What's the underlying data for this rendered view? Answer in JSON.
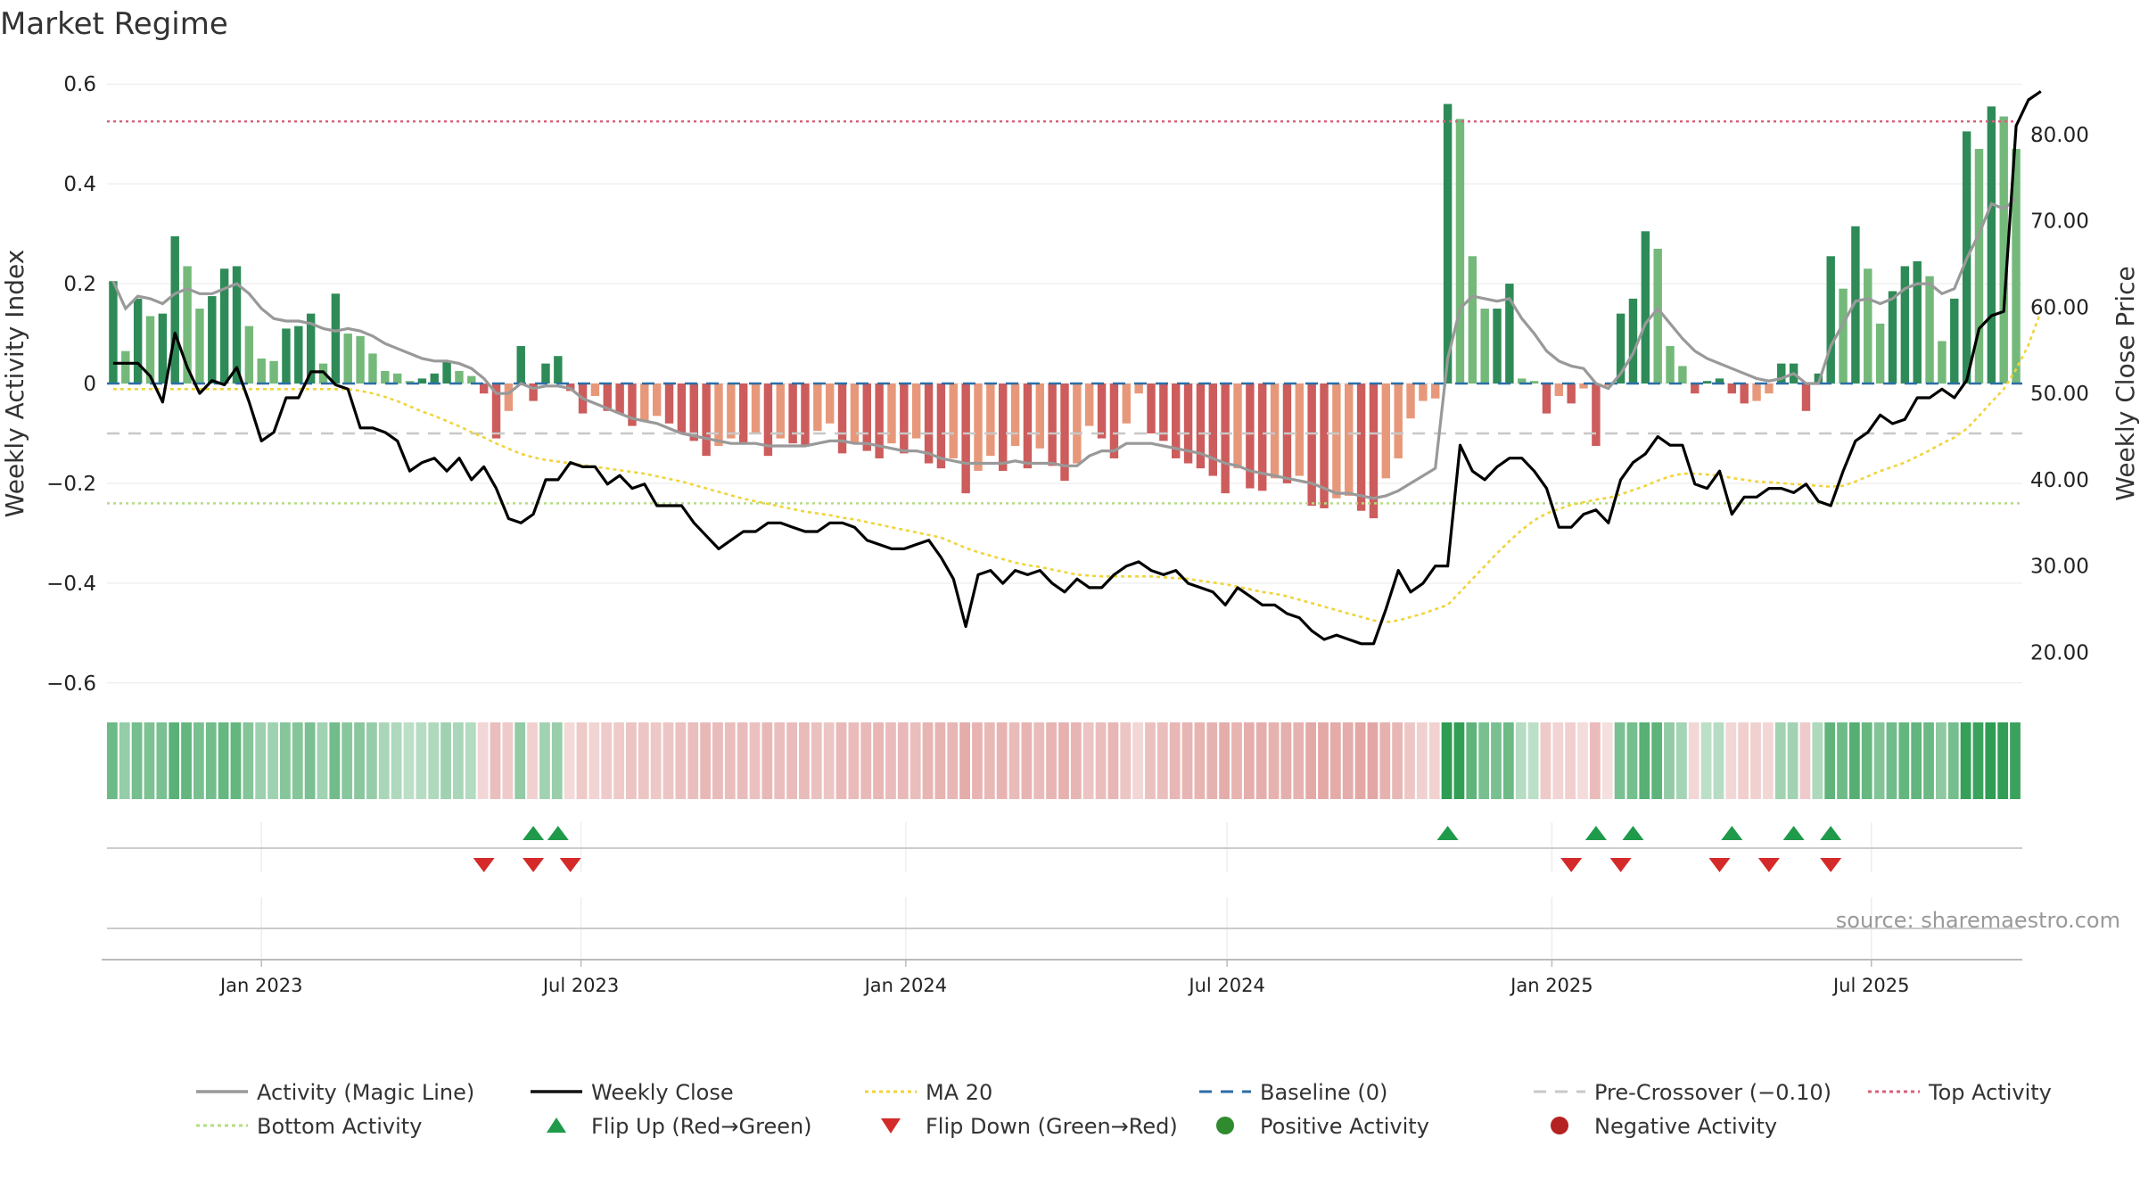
{
  "chart_data": {
    "type": "bar",
    "title": "Market Regime",
    "ylabel_left": "Weekly Activity Index",
    "ylabel_right": "Weekly Close Price",
    "source": "source: sharemaestro.com",
    "left_axis": {
      "range": [
        -0.62,
        0.62
      ],
      "ticks": [
        0.6,
        0.4,
        0.2,
        0,
        -0.2,
        -0.4,
        -0.6
      ],
      "tick_labels": [
        "0.6",
        "0.4",
        "0.2",
        "0",
        "−0.2",
        "−0.4",
        "−0.6"
      ]
    },
    "right_axis": {
      "range": [
        15.3,
        87.0
      ],
      "ticks": [
        80,
        70,
        60,
        50,
        40,
        30,
        20
      ],
      "tick_labels": [
        "80.00",
        "70.00",
        "60.00",
        "50.00",
        "40.00",
        "30.00",
        "20.00"
      ]
    },
    "x_axis": {
      "start": "2022-10-09",
      "end": "2025-09-07",
      "step_days": 7,
      "tick_dates": [
        "2023-01-01",
        "2023-07-01",
        "2024-01-01",
        "2024-07-01",
        "2025-01-01",
        "2025-07-01"
      ],
      "tick_labels": [
        "Jan 2023",
        "Jul 2023",
        "Jan 2024",
        "Jul 2024",
        "Jan 2025",
        "Jul 2025"
      ]
    },
    "reference_lines": {
      "baseline": 0,
      "pre_crossover": -0.1,
      "top_activity": 0.525,
      "bottom_activity": -0.24
    },
    "activity": [
      0.205,
      0.065,
      0.17,
      0.135,
      0.14,
      0.295,
      0.235,
      0.15,
      0.175,
      0.23,
      0.235,
      0.115,
      0.05,
      0.045,
      0.11,
      0.115,
      0.14,
      0.04,
      0.18,
      0.1,
      0.095,
      0.06,
      0.025,
      0.02,
      0.005,
      0.01,
      0.02,
      0.045,
      0.025,
      0.015,
      -0.02,
      -0.11,
      -0.055,
      0.075,
      -0.035,
      0.04,
      0.055,
      -0.015,
      -0.06,
      -0.025,
      -0.055,
      -0.06,
      -0.085,
      -0.075,
      -0.065,
      -0.08,
      -0.1,
      -0.115,
      -0.145,
      -0.125,
      -0.11,
      -0.12,
      -0.1,
      -0.145,
      -0.11,
      -0.12,
      -0.125,
      -0.095,
      -0.08,
      -0.14,
      -0.12,
      -0.135,
      -0.15,
      -0.12,
      -0.14,
      -0.11,
      -0.16,
      -0.17,
      -0.15,
      -0.22,
      -0.175,
      -0.145,
      -0.175,
      -0.125,
      -0.17,
      -0.13,
      -0.165,
      -0.195,
      -0.16,
      -0.085,
      -0.11,
      -0.15,
      -0.08,
      -0.02,
      -0.1,
      -0.115,
      -0.15,
      -0.16,
      -0.17,
      -0.185,
      -0.22,
      -0.17,
      -0.21,
      -0.215,
      -0.19,
      -0.2,
      -0.185,
      -0.245,
      -0.25,
      -0.23,
      -0.225,
      -0.255,
      -0.27,
      -0.19,
      -0.15,
      -0.07,
      -0.035,
      -0.03,
      0.56,
      0.53,
      0.255,
      0.15,
      0.15,
      0.2,
      0.01,
      0.005,
      -0.06,
      -0.025,
      -0.04,
      -0.01,
      -0.125,
      -0.005,
      0.14,
      0.17,
      0.305,
      0.27,
      0.075,
      0.035,
      -0.02,
      0.005,
      0.01,
      -0.02,
      -0.04,
      -0.035,
      -0.02,
      0.04,
      0.04,
      -0.055,
      0.02,
      0.255,
      0.19,
      0.315,
      0.23,
      0.12,
      0.185,
      0.235,
      0.245,
      0.215,
      0.085,
      0.17,
      0.505,
      0.47,
      0.555,
      0.535,
      0.47
    ],
    "magic_line": [
      0.205,
      0.15,
      0.175,
      0.17,
      0.16,
      0.18,
      0.19,
      0.18,
      0.18,
      0.19,
      0.2,
      0.18,
      0.15,
      0.13,
      0.125,
      0.125,
      0.12,
      0.11,
      0.105,
      0.11,
      0.105,
      0.095,
      0.08,
      0.07,
      0.06,
      0.05,
      0.045,
      0.045,
      0.04,
      0.03,
      0.01,
      -0.02,
      -0.02,
      0.0,
      -0.01,
      -0.005,
      -0.005,
      -0.01,
      -0.03,
      -0.04,
      -0.05,
      -0.06,
      -0.07,
      -0.075,
      -0.08,
      -0.09,
      -0.1,
      -0.105,
      -0.11,
      -0.115,
      -0.12,
      -0.12,
      -0.12,
      -0.125,
      -0.125,
      -0.125,
      -0.125,
      -0.12,
      -0.115,
      -0.115,
      -0.12,
      -0.12,
      -0.125,
      -0.13,
      -0.135,
      -0.135,
      -0.14,
      -0.15,
      -0.155,
      -0.16,
      -0.16,
      -0.16,
      -0.16,
      -0.155,
      -0.16,
      -0.16,
      -0.16,
      -0.165,
      -0.165,
      -0.145,
      -0.135,
      -0.135,
      -0.12,
      -0.12,
      -0.12,
      -0.125,
      -0.13,
      -0.135,
      -0.14,
      -0.15,
      -0.16,
      -0.165,
      -0.175,
      -0.18,
      -0.185,
      -0.19,
      -0.195,
      -0.2,
      -0.21,
      -0.22,
      -0.22,
      -0.225,
      -0.23,
      -0.225,
      -0.215,
      -0.2,
      -0.185,
      -0.17,
      0.05,
      0.15,
      0.175,
      0.17,
      0.165,
      0.17,
      0.13,
      0.1,
      0.065,
      0.045,
      0.035,
      0.03,
      0.0,
      -0.01,
      0.02,
      0.06,
      0.12,
      0.15,
      0.12,
      0.09,
      0.065,
      0.05,
      0.04,
      0.03,
      0.02,
      0.01,
      0.005,
      0.01,
      0.02,
      0.0,
      0.0,
      0.075,
      0.12,
      0.165,
      0.17,
      0.16,
      0.17,
      0.19,
      0.2,
      0.2,
      0.18,
      0.19,
      0.25,
      0.3,
      0.36,
      0.35,
      0.37
    ],
    "weekly_close": [
      53.5,
      53.5,
      53.5,
      52.0,
      49.0,
      57.0,
      53.0,
      50.0,
      51.5,
      51.0,
      53.0,
      49.0,
      44.5,
      45.5,
      49.5,
      49.5,
      52.5,
      52.5,
      51.0,
      50.5,
      46.0,
      46.0,
      45.5,
      44.5,
      41.0,
      42.0,
      42.5,
      41.0,
      42.5,
      40.0,
      41.5,
      39.0,
      35.5,
      35.0,
      36.0,
      40.0,
      40.0,
      42.0,
      41.5,
      41.5,
      39.5,
      40.5,
      39.0,
      39.5,
      37.0,
      37.0,
      37.0,
      35.0,
      33.5,
      32.0,
      33.0,
      34.0,
      34.0,
      35.0,
      35.0,
      34.5,
      34.0,
      34.0,
      35.0,
      35.0,
      34.5,
      33.0,
      32.5,
      32.0,
      32.0,
      32.5,
      33.0,
      31.0,
      28.5,
      23.0,
      29.0,
      29.5,
      28.0,
      29.5,
      29.0,
      29.5,
      28.0,
      27.0,
      28.5,
      27.5,
      27.5,
      29.0,
      30.0,
      30.5,
      29.5,
      29.0,
      29.5,
      28.0,
      27.5,
      27.0,
      25.5,
      27.5,
      26.5,
      25.5,
      25.5,
      24.5,
      24.0,
      22.5,
      21.5,
      22.0,
      21.5,
      21.0,
      21.0,
      25.0,
      29.5,
      27.0,
      28.0,
      30.0,
      30.0,
      44.0,
      41.0,
      40.0,
      41.5,
      42.5,
      42.5,
      41.0,
      39.0,
      34.5,
      34.5,
      36.0,
      36.5,
      35.0,
      40.0,
      42.0,
      43.0,
      45.0,
      44.0,
      44.0,
      39.5,
      39.0,
      41.0,
      36.0,
      38.0,
      38.0,
      39.0,
      39.0,
      38.5,
      39.5,
      37.5,
      37.0,
      41.0,
      44.5,
      45.5,
      47.5,
      46.5,
      47.0,
      49.5,
      49.5,
      50.5,
      49.5,
      51.5,
      57.5,
      59.0,
      59.5,
      81.0,
      84.0,
      85.0
    ],
    "ma_20": [
      50.5,
      50.5,
      50.5,
      50.5,
      50.5,
      50.5,
      50.5,
      50.5,
      50.5,
      50.5,
      50.5,
      50.5,
      50.5,
      50.5,
      50.5,
      50.5,
      50.5,
      50.5,
      50.5,
      50.5,
      50.3,
      50.0,
      49.6,
      49.1,
      48.5,
      47.9,
      47.4,
      46.8,
      46.2,
      45.5,
      44.9,
      44.2,
      43.6,
      43.0,
      42.6,
      42.3,
      42.1,
      41.9,
      41.7,
      41.5,
      41.3,
      41.1,
      40.9,
      40.7,
      40.4,
      40.1,
      39.8,
      39.4,
      39.0,
      38.6,
      38.2,
      37.8,
      37.5,
      37.2,
      36.9,
      36.6,
      36.3,
      36.1,
      35.9,
      35.6,
      35.4,
      35.1,
      34.8,
      34.5,
      34.2,
      33.9,
      33.6,
      33.3,
      32.7,
      32.1,
      31.6,
      31.2,
      30.8,
      30.4,
      30.1,
      29.9,
      29.6,
      29.3,
      29.0,
      28.9,
      28.8,
      28.8,
      28.8,
      28.8,
      28.8,
      28.7,
      28.6,
      28.5,
      28.3,
      28.1,
      27.9,
      27.6,
      27.3,
      27.0,
      26.8,
      26.5,
      26.1,
      25.7,
      25.3,
      24.9,
      24.5,
      24.1,
      23.7,
      23.5,
      23.7,
      24.1,
      24.5,
      25.0,
      25.5,
      27.0,
      28.5,
      30.0,
      31.5,
      32.9,
      34.2,
      35.3,
      36.1,
      36.6,
      37.1,
      37.4,
      37.7,
      37.9,
      38.3,
      38.8,
      39.3,
      39.9,
      40.4,
      40.7,
      40.7,
      40.6,
      40.5,
      40.2,
      40.0,
      39.8,
      39.7,
      39.6,
      39.5,
      39.4,
      39.3,
      39.2,
      39.3,
      39.8,
      40.4,
      41.0,
      41.5,
      42.0,
      42.7,
      43.4,
      44.2,
      44.9,
      45.9,
      47.4,
      49.0,
      50.5,
      52.8,
      55.6,
      59.5
    ],
    "flip_up_weeks": [
      34,
      36,
      108,
      120,
      123,
      131,
      136,
      139
    ],
    "flip_down_weeks": [
      30,
      34,
      37,
      118,
      122,
      130,
      134,
      139
    ],
    "strip_colors": {
      "positive": "#2e9c52",
      "negative": "#cf6b68"
    },
    "bar_colors": {
      "strong_positive": "#2e8b57",
      "positive": "#74b97a",
      "strong_negative": "#cd5c5c",
      "negative": "#e8987a"
    },
    "line_colors": {
      "magic_line": "#999999",
      "weekly_close": "#000000",
      "ma_20": "#f0d43a",
      "baseline": "#2b6ea6",
      "pre_crossover": "#c8c8c8",
      "top_activity": "#d9607a",
      "bottom_activity": "#b5dc84",
      "flip_up": "#1f9a4b",
      "flip_down": "#d42a2a"
    },
    "legend": [
      {
        "label": "Activity (Magic Line)",
        "symbol": "solid-line",
        "color": "#999999"
      },
      {
        "label": "Weekly Close",
        "symbol": "solid-line",
        "color": "#111111"
      },
      {
        "label": "MA 20",
        "symbol": "dotted-line",
        "color": "#f0d43a"
      },
      {
        "label": "Baseline (0)",
        "symbol": "dashed-line",
        "color": "#2b6ea6"
      },
      {
        "label": "Pre-Crossover (−0.10)",
        "symbol": "dashed-line",
        "color": "#c8c8c8"
      },
      {
        "label": "Top Activity",
        "symbol": "dotted-line",
        "color": "#d9607a"
      },
      {
        "label": "Bottom Activity",
        "symbol": "dotted-line",
        "color": "#b5dc84"
      },
      {
        "label": "Flip Up (Red→Green)",
        "symbol": "triangle-up",
        "color": "#1f9a4b"
      },
      {
        "label": "Flip Down (Green→Red)",
        "symbol": "triangle-down",
        "color": "#d42a2a"
      },
      {
        "label": "Positive Activity",
        "symbol": "circle",
        "color": "#2e8b2e"
      },
      {
        "label": "Negative Activity",
        "symbol": "circle",
        "color": "#b52222"
      }
    ]
  }
}
